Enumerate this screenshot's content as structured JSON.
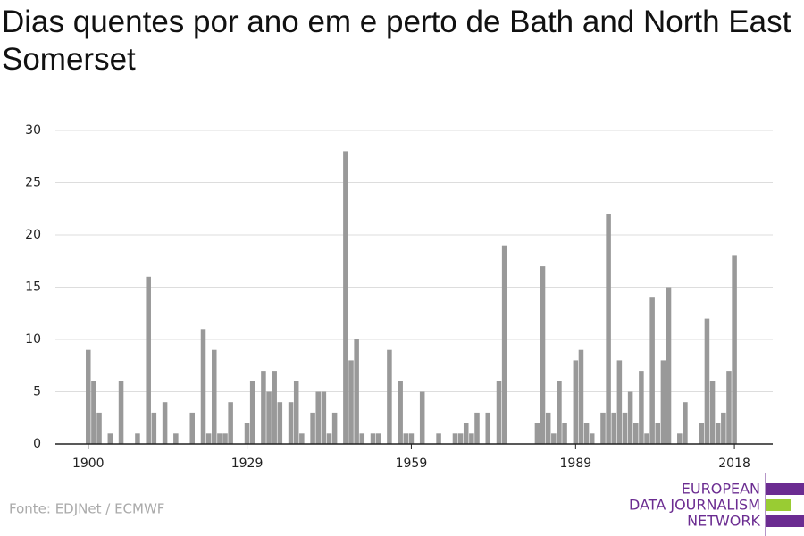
{
  "chart_data": {
    "type": "bar",
    "title": "Dias quentes por ano em e perto de Bath and North East Somerset",
    "x": [
      1900,
      1901,
      1902,
      1903,
      1904,
      1905,
      1906,
      1907,
      1908,
      1909,
      1910,
      1911,
      1912,
      1913,
      1914,
      1915,
      1916,
      1917,
      1918,
      1919,
      1920,
      1921,
      1922,
      1923,
      1924,
      1925,
      1926,
      1927,
      1928,
      1929,
      1930,
      1931,
      1932,
      1933,
      1934,
      1935,
      1936,
      1937,
      1938,
      1939,
      1940,
      1941,
      1942,
      1943,
      1944,
      1945,
      1946,
      1947,
      1948,
      1949,
      1950,
      1951,
      1952,
      1953,
      1954,
      1955,
      1956,
      1957,
      1958,
      1959,
      1960,
      1961,
      1962,
      1963,
      1964,
      1965,
      1966,
      1967,
      1968,
      1969,
      1970,
      1971,
      1972,
      1973,
      1974,
      1975,
      1976,
      1977,
      1978,
      1979,
      1980,
      1981,
      1982,
      1983,
      1984,
      1985,
      1986,
      1987,
      1988,
      1989,
      1990,
      1991,
      1992,
      1993,
      1994,
      1995,
      1996,
      1997,
      1998,
      1999,
      2000,
      2001,
      2002,
      2003,
      2004,
      2005,
      2006,
      2007,
      2008,
      2009,
      2010,
      2011,
      2012,
      2013,
      2014,
      2015,
      2016,
      2017,
      2018
    ],
    "values": [
      9,
      6,
      3,
      0,
      1,
      0,
      6,
      0,
      0,
      1,
      0,
      16,
      3,
      0,
      4,
      0,
      1,
      0,
      0,
      3,
      0,
      11,
      1,
      9,
      1,
      1,
      4,
      0,
      0,
      2,
      6,
      0,
      7,
      5,
      7,
      4,
      0,
      4,
      6,
      1,
      0,
      3,
      5,
      5,
      1,
      3,
      0,
      28,
      8,
      10,
      1,
      0,
      1,
      1,
      0,
      9,
      0,
      6,
      1,
      1,
      0,
      5,
      0,
      0,
      1,
      0,
      0,
      1,
      1,
      2,
      1,
      3,
      0,
      3,
      0,
      6,
      19,
      0,
      0,
      0,
      0,
      0,
      2,
      17,
      3,
      1,
      6,
      2,
      0,
      8,
      9,
      2,
      1,
      0,
      3,
      22,
      3,
      8,
      3,
      5,
      2,
      7,
      1,
      14,
      2,
      8,
      15,
      0,
      1,
      4,
      0,
      0,
      2,
      12,
      6,
      2,
      3,
      7,
      18
    ],
    "color": "#999999",
    "xlim": [
      1894,
      2025
    ],
    "xticks": [
      1900,
      1929,
      1959,
      1989,
      2018
    ],
    "ylim": [
      0,
      30
    ],
    "yticks": [
      0,
      5,
      10,
      15,
      20,
      25,
      30
    ],
    "grid": true,
    "source": "Fonte: EDJNet / ECMWF"
  },
  "logo": {
    "lines": [
      "EUROPEAN",
      "DATA JOURNALISM",
      "NETWORK"
    ]
  }
}
